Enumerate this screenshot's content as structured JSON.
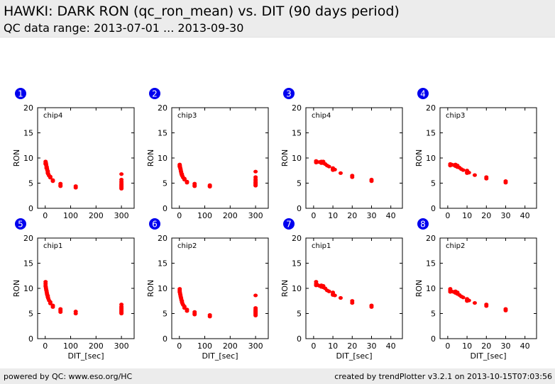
{
  "header": {
    "title": "HAWKI: DARK RON (qc_ron_mean) vs. DIT (90 days period)",
    "subtitle": "QC data range: 2013-07-01 ... 2013-09-30"
  },
  "footer": {
    "left": "powered by QC: www.eso.org/HC",
    "right": "created by trendPlotter v3.2.1 on 2013-10-15T07:03:56"
  },
  "colors": {
    "points": "#ff0000",
    "badge": "#0000ee",
    "header_bg": "#ececec"
  },
  "chart_data": [
    {
      "type": "scatter",
      "badge": "1",
      "label": "chip4",
      "xlabel": "",
      "ylabel": "RON",
      "xlim": [
        -30,
        350
      ],
      "ylim": [
        0,
        20
      ],
      "xticks": [
        "0",
        "100",
        "200",
        "300"
      ],
      "yticks": [
        "0",
        "5",
        "10",
        "15",
        "20"
      ],
      "x": [
        1.3,
        1.3,
        1.3,
        2,
        3,
        4,
        5,
        5,
        6,
        7,
        8,
        10,
        10,
        10,
        12,
        15,
        20,
        20,
        30,
        30,
        60,
        60,
        60,
        120,
        120,
        300,
        300,
        300,
        300,
        300,
        300,
        300,
        300,
        300
      ],
      "y": [
        9.3,
        9.0,
        8.8,
        9.1,
        8.9,
        8.6,
        8.3,
        8.0,
        8.2,
        7.9,
        7.6,
        7.4,
        7.2,
        7.0,
        6.8,
        6.5,
        6.3,
        6.1,
        5.6,
        5.4,
        4.9,
        4.6,
        4.4,
        4.4,
        4.1,
        6.8,
        5.7,
        5.3,
        5.0,
        4.7,
        4.5,
        4.3,
        4.1,
        3.9
      ]
    },
    {
      "type": "scatter",
      "badge": "2",
      "label": "chip3",
      "xlabel": "",
      "ylabel": "RON",
      "xlim": [
        -30,
        350
      ],
      "ylim": [
        0,
        20
      ],
      "xticks": [
        "0",
        "100",
        "200",
        "300"
      ],
      "yticks": [
        "0",
        "5",
        "10",
        "15",
        "20"
      ],
      "x": [
        1.3,
        1.3,
        1.3,
        2,
        3,
        4,
        5,
        6,
        7,
        8,
        10,
        10,
        12,
        15,
        20,
        20,
        30,
        30,
        60,
        60,
        60,
        120,
        120,
        120,
        300,
        300,
        300,
        300,
        300,
        300,
        300,
        300,
        300
      ],
      "y": [
        8.7,
        8.5,
        8.3,
        8.4,
        8.1,
        7.9,
        7.7,
        7.4,
        7.2,
        6.9,
        6.8,
        6.6,
        6.4,
        6.1,
        5.9,
        5.7,
        5.3,
        5.1,
        4.9,
        4.6,
        4.4,
        4.6,
        4.4,
        4.3,
        7.3,
        6.2,
        5.8,
        5.5,
        5.2,
        5.0,
        4.8,
        4.6,
        4.5
      ]
    },
    {
      "type": "scatter",
      "badge": "3",
      "label": "chip4",
      "xlabel": "",
      "ylabel": "RON",
      "xlim": [
        -4,
        46
      ],
      "ylim": [
        0,
        20
      ],
      "xticks": [
        "0",
        "10",
        "20",
        "30",
        "40"
      ],
      "yticks": [
        "0",
        "5",
        "10",
        "15",
        "20"
      ],
      "x": [
        1.3,
        1.3,
        2,
        3,
        4,
        4,
        5,
        5,
        6,
        7,
        8,
        10,
        10,
        10,
        11,
        14,
        20,
        20,
        30,
        30
      ],
      "y": [
        9.4,
        9.1,
        9.2,
        9.2,
        9.3,
        9.0,
        9.3,
        9.0,
        8.8,
        8.5,
        8.3,
        8.0,
        7.8,
        7.6,
        7.7,
        7.0,
        6.5,
        6.2,
        5.7,
        5.4
      ]
    },
    {
      "type": "scatter",
      "badge": "4",
      "label": "chip3",
      "xlabel": "",
      "ylabel": "RON",
      "xlim": [
        -4,
        46
      ],
      "ylim": [
        0,
        20
      ],
      "xticks": [
        "0",
        "10",
        "20",
        "30",
        "40"
      ],
      "yticks": [
        "0",
        "5",
        "10",
        "15",
        "20"
      ],
      "x": [
        1.3,
        1.3,
        2,
        3,
        4,
        4,
        5,
        5,
        6,
        7,
        8,
        10,
        10,
        10,
        11,
        14,
        20,
        20,
        30,
        30
      ],
      "y": [
        8.8,
        8.5,
        8.7,
        8.6,
        8.7,
        8.4,
        8.5,
        8.2,
        8.1,
        7.8,
        7.6,
        7.5,
        7.2,
        7.0,
        7.1,
        6.6,
        6.2,
        5.9,
        5.4,
        5.1
      ]
    },
    {
      "type": "scatter",
      "badge": "5",
      "label": "chip1",
      "xlabel": "DIT_[sec]",
      "ylabel": "RON",
      "xlim": [
        -30,
        350
      ],
      "ylim": [
        0,
        20
      ],
      "xticks": [
        "0",
        "100",
        "200",
        "300"
      ],
      "yticks": [
        "0",
        "5",
        "10",
        "15",
        "20"
      ],
      "x": [
        1.3,
        1.3,
        1.3,
        2,
        3,
        4,
        5,
        6,
        7,
        8,
        10,
        10,
        12,
        15,
        20,
        20,
        30,
        30,
        60,
        60,
        60,
        120,
        120,
        300,
        300,
        300,
        300,
        300,
        300,
        300,
        300,
        300
      ],
      "y": [
        11.3,
        10.9,
        10.5,
        10.3,
        10.0,
        9.7,
        9.5,
        9.2,
        8.9,
        8.7,
        8.5,
        8.3,
        8.0,
        7.6,
        7.3,
        7.0,
        6.6,
        6.3,
        5.9,
        5.6,
        5.3,
        5.4,
        5.0,
        6.8,
        6.4,
        6.2,
        6.0,
        5.8,
        5.6,
        5.4,
        5.2,
        5.0
      ]
    },
    {
      "type": "scatter",
      "badge": "6",
      "label": "chip2",
      "xlabel": "DIT_[sec]",
      "ylabel": "RON",
      "xlim": [
        -30,
        350
      ],
      "ylim": [
        0,
        20
      ],
      "xticks": [
        "0",
        "100",
        "200",
        "300"
      ],
      "yticks": [
        "0",
        "5",
        "10",
        "15",
        "20"
      ],
      "x": [
        1.3,
        1.3,
        1.3,
        2,
        3,
        4,
        5,
        6,
        7,
        8,
        10,
        10,
        12,
        15,
        20,
        20,
        30,
        30,
        60,
        60,
        60,
        120,
        120,
        300,
        300,
        300,
        300,
        300,
        300,
        300,
        300,
        300
      ],
      "y": [
        9.9,
        9.6,
        9.3,
        9.2,
        8.9,
        8.7,
        8.4,
        8.2,
        8.0,
        7.7,
        7.5,
        7.3,
        7.0,
        6.7,
        6.4,
        6.1,
        5.8,
        5.5,
        5.3,
        5.0,
        4.8,
        4.7,
        4.4,
        8.6,
        6.1,
        5.8,
        5.6,
        5.4,
        5.2,
        5.0,
        4.8,
        4.6
      ]
    },
    {
      "type": "scatter",
      "badge": "7",
      "label": "chip1",
      "xlabel": "DIT_[sec]",
      "ylabel": "RON",
      "xlim": [
        -4,
        46
      ],
      "ylim": [
        0,
        20
      ],
      "xticks": [
        "0",
        "10",
        "20",
        "30",
        "40"
      ],
      "yticks": [
        "0",
        "5",
        "10",
        "15",
        "20"
      ],
      "x": [
        1.3,
        1.3,
        1.3,
        2,
        3,
        4,
        4,
        5,
        5,
        6,
        7,
        8,
        10,
        10,
        10,
        11,
        14,
        20,
        20,
        30,
        30
      ],
      "y": [
        11.3,
        10.9,
        10.6,
        10.7,
        10.5,
        10.6,
        10.3,
        10.5,
        10.2,
        10.0,
        9.6,
        9.4,
        9.2,
        8.9,
        8.7,
        8.6,
        8.1,
        7.5,
        7.1,
        6.6,
        6.3
      ]
    },
    {
      "type": "scatter",
      "badge": "8",
      "label": "chip2",
      "xlabel": "DIT_[sec]",
      "ylabel": "RON",
      "xlim": [
        -4,
        46
      ],
      "ylim": [
        0,
        20
      ],
      "xticks": [
        "0",
        "10",
        "20",
        "30",
        "40"
      ],
      "yticks": [
        "0",
        "5",
        "10",
        "15",
        "20"
      ],
      "x": [
        1.3,
        1.3,
        1.3,
        2,
        3,
        4,
        4,
        5,
        5,
        6,
        7,
        8,
        10,
        10,
        10,
        11,
        14,
        20,
        20,
        30,
        30
      ],
      "y": [
        9.9,
        9.6,
        9.3,
        9.4,
        9.3,
        9.4,
        9.1,
        9.2,
        8.9,
        8.7,
        8.4,
        8.2,
        7.9,
        7.7,
        7.5,
        7.6,
        7.1,
        6.8,
        6.5,
        5.9,
        5.6
      ]
    }
  ]
}
